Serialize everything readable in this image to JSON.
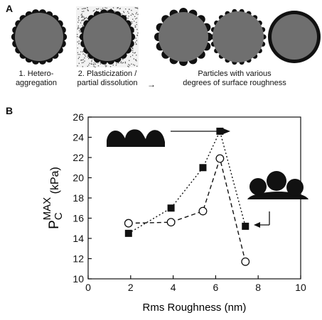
{
  "panel_a": {
    "label": "A",
    "captions": [
      "1. Hetero-",
      "aggregation",
      "2. Plasticization /",
      "partial dissolution",
      "Particles with various",
      "degrees of surface roughness"
    ],
    "arrow_glyph": "→"
  },
  "panel_b": {
    "label": "B"
  },
  "chart_data": {
    "type": "line",
    "xlabel": "Rms Roughness (nm)",
    "ylabel_main": "P",
    "ylabel_sup": "MAX",
    "ylabel_sub": "C",
    "ylabel_unit": "(kPa)",
    "xlim": [
      0,
      10
    ],
    "ylim": [
      10,
      26
    ],
    "x_ticks": [
      0,
      2,
      4,
      6,
      8,
      10
    ],
    "y_ticks": [
      10,
      12,
      14,
      16,
      18,
      20,
      22,
      24,
      26
    ],
    "grid": false,
    "series": [
      {
        "marker": "filled-square",
        "line_style": "dotted",
        "x": [
          1.9,
          3.9,
          5.4,
          6.2,
          7.4
        ],
        "y": [
          14.5,
          17.0,
          21.0,
          24.6,
          15.2
        ]
      },
      {
        "marker": "open-circle",
        "line_style": "dashed",
        "x": [
          1.9,
          3.9,
          5.4,
          6.2,
          7.4
        ],
        "y": [
          15.5,
          15.6,
          16.7,
          21.9,
          11.7
        ]
      }
    ]
  }
}
